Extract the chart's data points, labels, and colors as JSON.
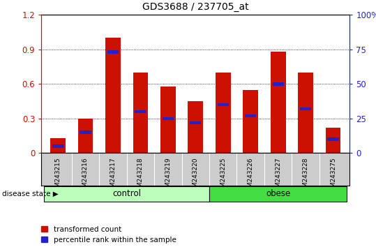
{
  "title": "GDS3688 / 237705_at",
  "samples": [
    "GSM243215",
    "GSM243216",
    "GSM243217",
    "GSM243218",
    "GSM243219",
    "GSM243220",
    "GSM243225",
    "GSM243226",
    "GSM243227",
    "GSM243228",
    "GSM243275"
  ],
  "transformed_count": [
    0.13,
    0.3,
    1.0,
    0.7,
    0.58,
    0.45,
    0.7,
    0.55,
    0.88,
    0.7,
    0.22
  ],
  "percentile_rank": [
    5,
    15,
    73,
    30,
    25,
    22,
    35,
    27,
    50,
    32,
    10
  ],
  "bar_color": "#cc1100",
  "blue_color": "#2222cc",
  "ylim_left": [
    0,
    1.2
  ],
  "ylim_right": [
    0,
    100
  ],
  "yticks_left": [
    0,
    0.3,
    0.6,
    0.9,
    1.2
  ],
  "yticks_right": [
    0,
    25,
    50,
    75,
    100
  ],
  "ytick_labels_left": [
    "0",
    "0.3",
    "0.6",
    "0.9",
    "1.2"
  ],
  "ytick_labels_right": [
    "0",
    "25",
    "50",
    "75",
    "100%"
  ],
  "groups": [
    {
      "label": "control",
      "start": 0,
      "end": 6,
      "color": "#bbffbb"
    },
    {
      "label": "obese",
      "start": 6,
      "end": 11,
      "color": "#44dd44"
    }
  ],
  "disease_state_label": "disease state",
  "legend_items": [
    {
      "label": "transformed count",
      "color": "#cc1100"
    },
    {
      "label": "percentile rank within the sample",
      "color": "#2222cc"
    }
  ],
  "bar_width": 0.55,
  "background_color": "#ffffff",
  "title_fontsize": 10,
  "sample_bg": "#cccccc",
  "plot_bg": "#ffffff"
}
